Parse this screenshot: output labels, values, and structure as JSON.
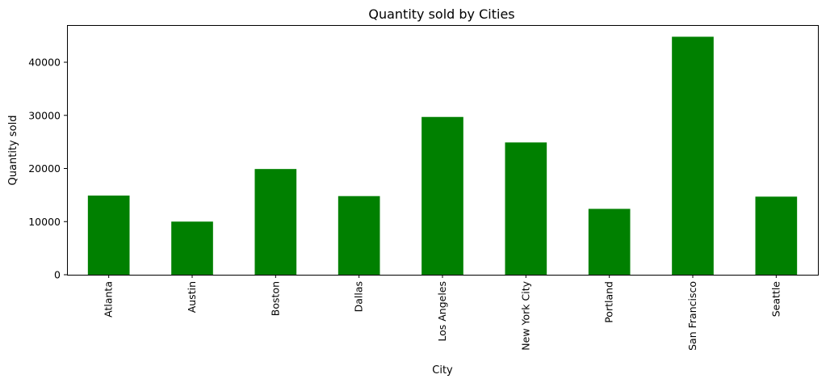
{
  "chart_data": {
    "type": "bar",
    "title": "Quantity sold by Cities",
    "xlabel": "City",
    "ylabel": "Quantity sold",
    "categories": [
      "Atlanta",
      "Austin",
      "Boston",
      "Dallas",
      "Los Angeles",
      "New York City",
      "Portland",
      "San Francisco",
      "Seattle"
    ],
    "values": [
      14900,
      10000,
      19900,
      14800,
      29700,
      24900,
      12400,
      44800,
      14700
    ],
    "yticks": [
      0,
      10000,
      20000,
      30000,
      40000
    ],
    "ylim": [
      0,
      47000
    ],
    "bar_color": "#008000",
    "grid": false,
    "legend": false
  }
}
